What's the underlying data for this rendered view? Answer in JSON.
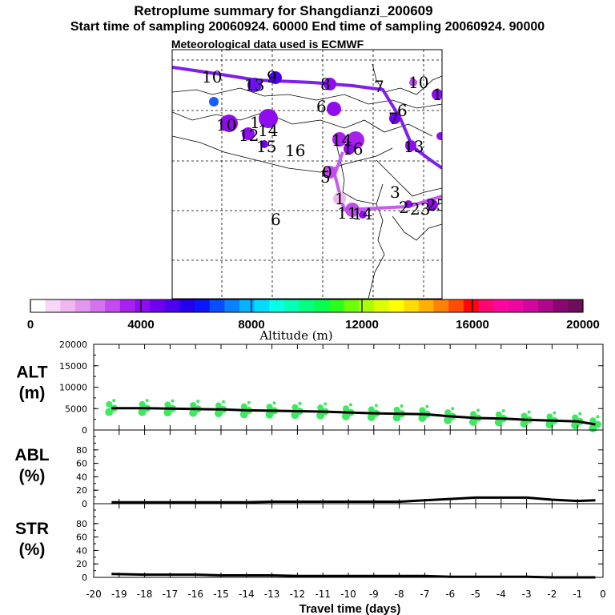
{
  "header": {
    "title": "Retroplume summary for Shangdianzi_200609",
    "sampling_line": "Start time of sampling 20060924. 60000     End time of sampling 20060924. 90000",
    "met_line": "Meteorological data used is ECMWF"
  },
  "colorbar": {
    "title": "Altitude (m)",
    "tick_labels": [
      "0",
      "4000",
      "8000",
      "12000",
      "16000",
      "20000"
    ],
    "colors": [
      "#ffffff",
      "#f7d6f7",
      "#efb6ef",
      "#e296ef",
      "#d472ef",
      "#c24aef",
      "#a822ef",
      "#8f0cef",
      "#6e00ef",
      "#4c00ef",
      "#2400ef",
      "#0a16ff",
      "#0a4cff",
      "#0a82ff",
      "#06b4ff",
      "#06dcff",
      "#06ffe6",
      "#06ffb4",
      "#06ff82",
      "#06ff50",
      "#2cff1e",
      "#6eff06",
      "#a8ff06",
      "#dcff06",
      "#ffff06",
      "#ffdc06",
      "#ffb006",
      "#ff8006",
      "#ff4c06",
      "#ff0606",
      "#ff0670",
      "#ff06a0",
      "#ef06a0",
      "#d406a0",
      "#b0068a",
      "#8a0670",
      "#6c0e5a"
    ]
  },
  "map": {
    "labels": [
      "10",
      "13",
      "9",
      "8",
      "7",
      "10",
      "6",
      "12",
      "7",
      "10",
      "1",
      "14",
      "14",
      "15",
      "16",
      "16",
      "6",
      "16",
      "13",
      "5",
      "0",
      "1",
      "3",
      "11",
      "2",
      "23",
      "25",
      "14",
      "6"
    ],
    "trajectory_color": "#7f1fef",
    "recent_color": "#c65cef"
  },
  "chart_data": [
    {
      "type": "line",
      "panel": "ALT",
      "title": "",
      "ylabel": [
        "ALT",
        "(m)"
      ],
      "ylim": [
        0,
        20000
      ],
      "y_ticks": [
        "20000",
        "15000",
        "10000",
        "5000",
        "0"
      ],
      "series": [
        {
          "name": "mean altitude",
          "x": [
            -19.3,
            -18,
            -17,
            -16,
            -15,
            -14,
            -13,
            -12,
            -11,
            -10,
            -9,
            -8,
            -7,
            -6,
            -5,
            -4,
            -3,
            -2,
            -1,
            -0.3
          ],
          "values": [
            5100,
            5100,
            5000,
            4900,
            4800,
            4600,
            4500,
            4400,
            4300,
            4100,
            3900,
            3800,
            3700,
            3200,
            2800,
            2700,
            2400,
            2200,
            2000,
            1300
          ]
        }
      ],
      "marker_color": "#3ee860"
    },
    {
      "type": "line",
      "panel": "ABL",
      "ylabel": [
        "ABL",
        "(%)"
      ],
      "ylim": [
        0,
        100
      ],
      "y_ticks": [
        "80",
        "60",
        "40",
        "20",
        "0"
      ],
      "series": [
        {
          "name": "fraction in ABL",
          "x": [
            -19.3,
            -18,
            -17,
            -16,
            -15,
            -14,
            -13,
            -12,
            -11,
            -10,
            -9,
            -8,
            -7,
            -6,
            -5,
            -4,
            -3,
            -2,
            -1,
            -0.3
          ],
          "values": [
            2,
            2,
            2,
            2,
            2,
            2,
            3,
            3,
            3,
            3,
            3,
            3,
            5,
            7,
            9,
            9,
            9,
            6,
            4,
            5
          ]
        }
      ]
    },
    {
      "type": "line",
      "panel": "STR",
      "ylabel": [
        "STR",
        "(%)"
      ],
      "ylim": [
        0,
        100
      ],
      "y_ticks": [
        "80",
        "60",
        "40",
        "20",
        "0"
      ],
      "series": [
        {
          "name": "fraction in stratosphere",
          "x": [
            -19.3,
            -18,
            -17,
            -16,
            -15,
            -14,
            -13,
            -12,
            -11,
            -10,
            -9,
            -8,
            -7,
            -6,
            -5,
            -4,
            -3,
            -2,
            -1,
            -0.3
          ],
          "values": [
            5,
            4,
            4,
            4,
            3,
            3,
            3,
            2,
            2,
            2,
            2,
            2,
            2,
            1,
            1,
            1,
            1,
            0,
            0,
            0
          ]
        }
      ]
    }
  ],
  "x_axis": {
    "title": "Travel time (days)",
    "range": [
      -20,
      0
    ],
    "tick_labels": [
      "-20",
      "-19",
      "-18",
      "-17",
      "-16",
      "-15",
      "-14",
      "-13",
      "-12",
      "-11",
      "-10",
      "-9",
      "-8",
      "-7",
      "-6",
      "-5",
      "-4",
      "-3",
      "-2",
      "-1",
      "0"
    ]
  }
}
